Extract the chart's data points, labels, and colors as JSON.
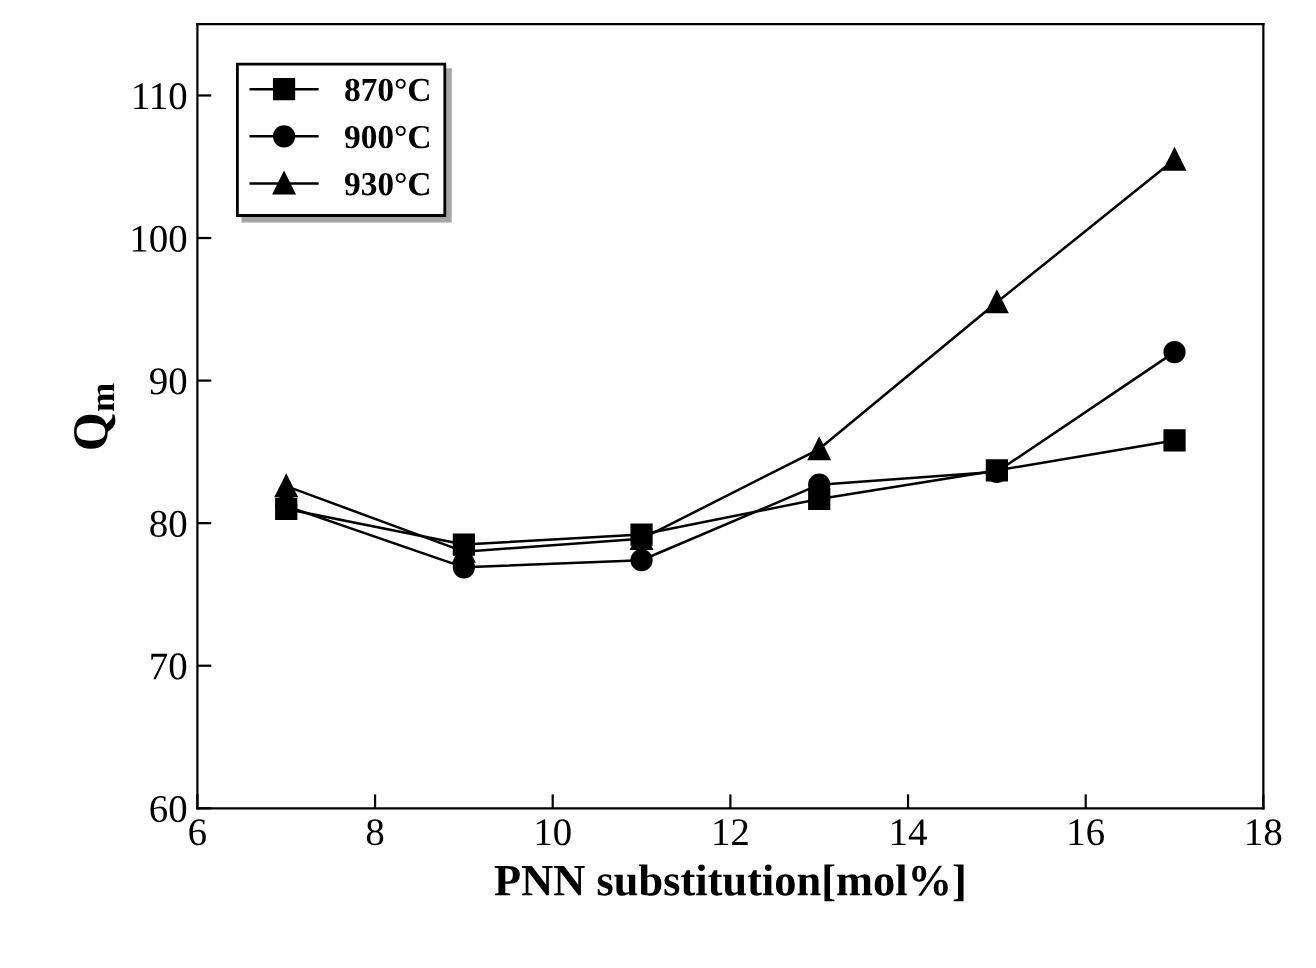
{
  "chart_data": {
    "type": "line",
    "xlabel": "PNN substitution[mol%]",
    "ylabel": "Q$_{m}$",
    "x": [
      7,
      9,
      11,
      13,
      15,
      17
    ],
    "series": [
      {
        "name": "870°C",
        "color": "#000000",
        "marker": "square",
        "values": [
          81.0,
          78.5,
          79.2,
          81.7,
          83.7,
          85.8
        ]
      },
      {
        "name": "900°C",
        "color": "#000000",
        "marker": "circle",
        "values": [
          81.2,
          76.9,
          77.4,
          82.7,
          83.6,
          92.0
        ]
      },
      {
        "name": "930°C",
        "color": "#000000",
        "marker": "triangle",
        "values": [
          82.6,
          78.0,
          78.9,
          85.2,
          95.5,
          105.5
        ]
      }
    ],
    "xlim": [
      6,
      18
    ],
    "xticks": [
      6,
      8,
      10,
      12,
      14,
      16,
      18
    ],
    "ylim": [
      60,
      115
    ],
    "yticks": [
      60,
      70,
      80,
      90,
      100,
      110
    ],
    "grid": false,
    "legend": "top left",
    "line_style": "solid"
  }
}
